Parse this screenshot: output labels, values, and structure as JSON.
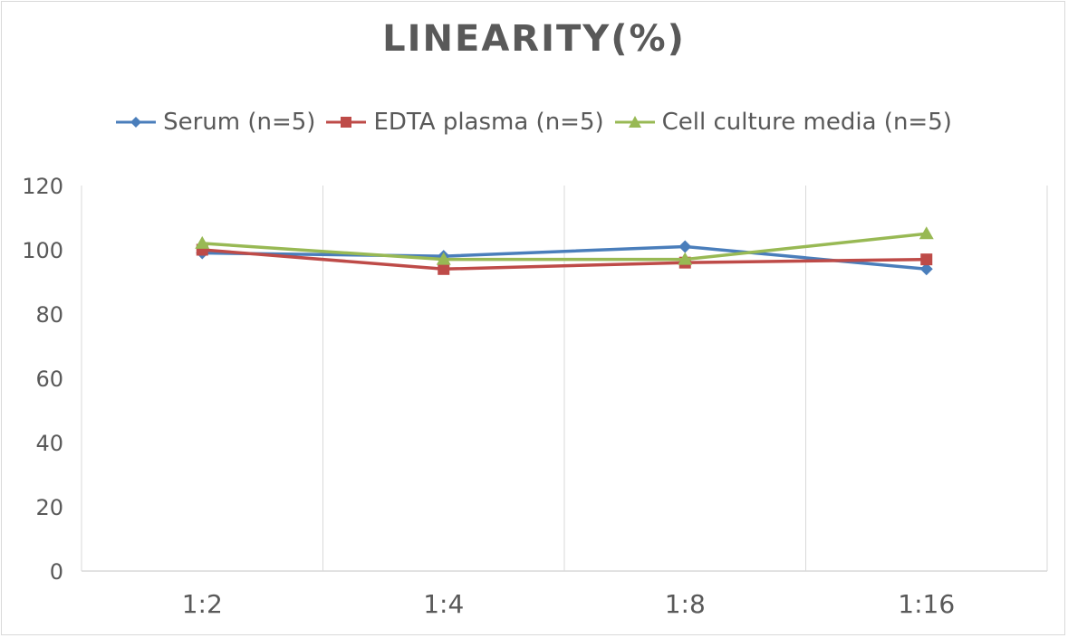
{
  "chart_data": {
    "type": "line",
    "title": "LINEARITY(%)",
    "xlabel": "",
    "ylabel": "",
    "categories": [
      "1:2",
      "1:4",
      "1:8",
      "1:16"
    ],
    "ylim": [
      0,
      120
    ],
    "yticks": [
      0,
      20,
      40,
      60,
      80,
      100,
      120
    ],
    "ytick_labels": [
      "0",
      "20",
      "40",
      "60",
      "80",
      "100",
      "120"
    ],
    "grid": "vertical",
    "legend": "top",
    "series": [
      {
        "name": "Serum (n=5)",
        "values": [
          99,
          98,
          101,
          94
        ],
        "color": "#4a7ebb",
        "marker": "diamond"
      },
      {
        "name": "EDTA plasma (n=5)",
        "values": [
          100,
          94,
          96,
          97
        ],
        "color": "#be4b48",
        "marker": "square"
      },
      {
        "name": "Cell culture media (n=5)",
        "values": [
          102,
          97,
          97,
          105
        ],
        "color": "#98b954",
        "marker": "triangle"
      }
    ]
  }
}
